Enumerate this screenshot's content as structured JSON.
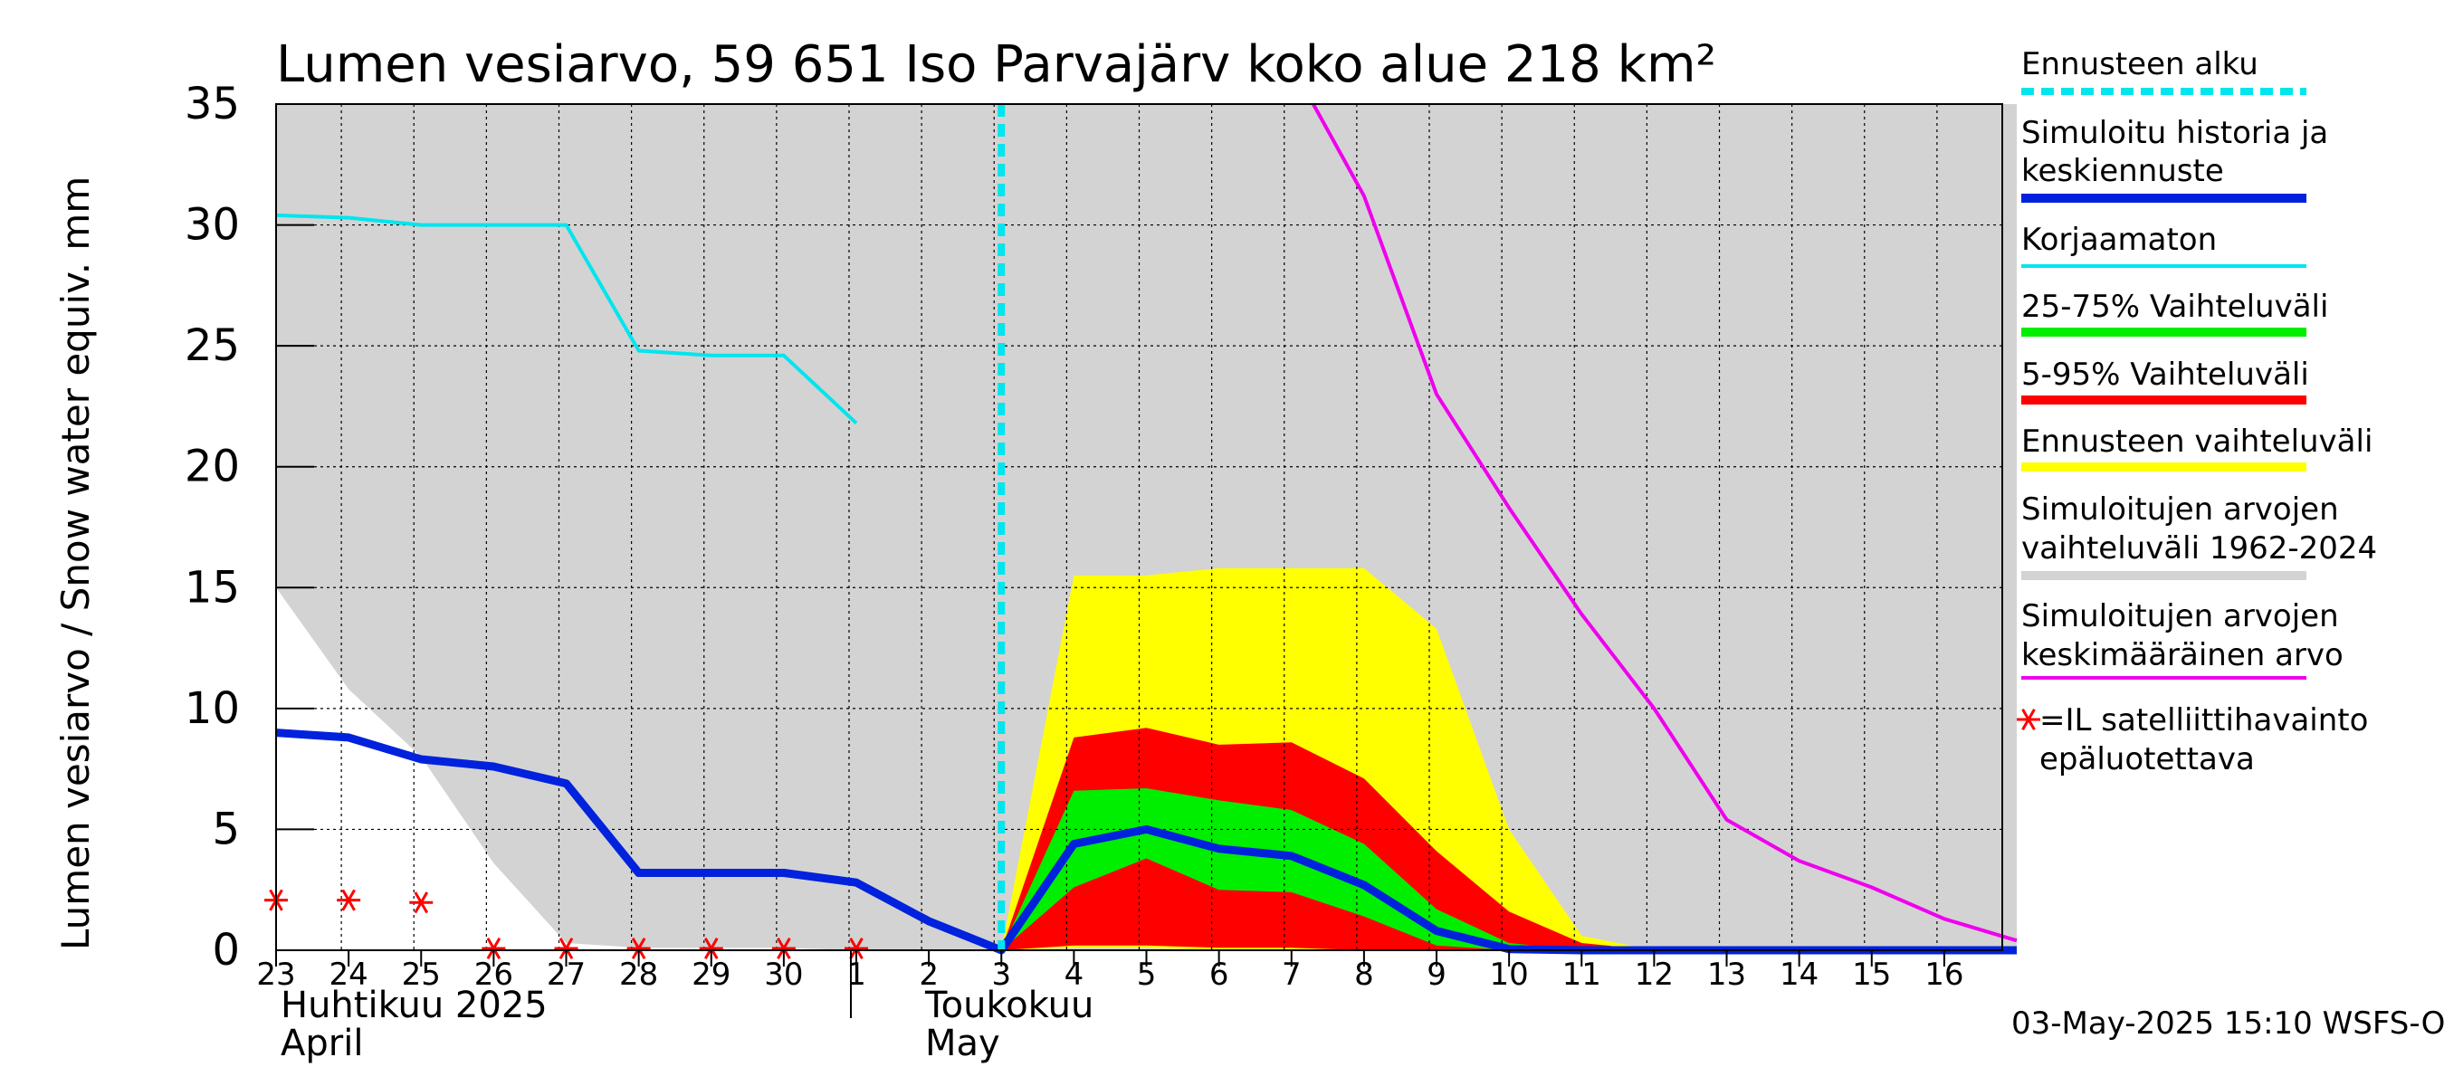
{
  "chart_data": {
    "type": "area",
    "title": "Lumen vesiarvo, 59 651 Iso Parvajärv koko alue 218 km²",
    "ylabel": "Lumen vesiarvo / Snow water equiv.    mm",
    "ylim": [
      0,
      35
    ],
    "yticks": [
      "0",
      "5",
      "10",
      "15",
      "20",
      "25",
      "30",
      "35"
    ],
    "x_day_labels": [
      "23",
      "24",
      "25",
      "26",
      "27",
      "28",
      "29",
      "30",
      "1",
      "2",
      "3",
      "4",
      "5",
      "6",
      "7",
      "8",
      "9",
      "10",
      "11",
      "12",
      "13",
      "14",
      "15",
      "16"
    ],
    "month_labels": [
      "Huhtikuu  2025",
      "April",
      "Toukokuu",
      "May"
    ],
    "grid": true,
    "legend_position": "right",
    "forecast_start_day": 10,
    "series": [
      {
        "name": "Simuloitujen arvojen vaihteluväli 1962-2024",
        "color": "#d3d3d3",
        "x": [
          0,
          1,
          2,
          3,
          4,
          5,
          6,
          7,
          8,
          9,
          10,
          11,
          12,
          13,
          14,
          15,
          16,
          17,
          18,
          19,
          20,
          21,
          22,
          23,
          24
        ],
        "upper": [
          35,
          35,
          35,
          35,
          35,
          35,
          35,
          35,
          35,
          35,
          35,
          35,
          35,
          35,
          35,
          35,
          35,
          35,
          35,
          35,
          35,
          35,
          35,
          35,
          35
        ],
        "lower": [
          15,
          10.8,
          8,
          3.6,
          0.3,
          0.1,
          0.1,
          0.1,
          0,
          0,
          0,
          0,
          0,
          0,
          0,
          0,
          0,
          0,
          0,
          0,
          0,
          0,
          0,
          0,
          0
        ]
      },
      {
        "name": "Ennusteen vaihteluväli",
        "color": "#ffff00",
        "x": [
          10,
          11,
          12,
          13,
          14,
          15,
          16,
          17,
          18,
          19
        ],
        "upper": [
          0,
          15.5,
          15.5,
          15.8,
          15.8,
          15.8,
          13.3,
          5,
          0.6,
          0
        ],
        "lower": [
          0,
          0.1,
          0.1,
          0,
          0,
          0,
          0,
          0,
          0,
          0
        ]
      },
      {
        "name": "5-95% Vaihteluväli",
        "color": "#ff0000",
        "x": [
          10,
          11,
          12,
          13,
          14,
          15,
          16,
          17,
          18,
          19
        ],
        "upper": [
          0,
          8.8,
          9.2,
          8.5,
          8.6,
          7.1,
          4.1,
          1.6,
          0.3,
          0
        ],
        "lower": [
          0,
          0.2,
          0.2,
          0.1,
          0.1,
          0,
          0,
          0,
          0,
          0
        ]
      },
      {
        "name": "25-75% Vaihteluväli",
        "color": "#00ee00",
        "x": [
          10,
          11,
          12,
          13,
          14,
          15,
          16,
          17,
          18
        ],
        "upper": [
          0,
          6.6,
          6.7,
          6.2,
          5.8,
          4.4,
          1.7,
          0.3,
          0
        ],
        "lower": [
          0,
          2.6,
          3.8,
          2.5,
          2.4,
          1.4,
          0.2,
          0,
          0
        ]
      },
      {
        "name": "Korjaamaton",
        "color": "#00e5ee",
        "x": [
          0,
          1,
          2,
          3,
          4,
          5,
          6,
          7,
          8
        ],
        "values": [
          30.4,
          30.3,
          30,
          30,
          30,
          24.8,
          24.6,
          24.6,
          21.8
        ]
      },
      {
        "name": "Simuloitujen arvojen keskimääräinen arvo",
        "color": "#ee00ee",
        "x": [
          14.3,
          15,
          16,
          17,
          18,
          19,
          20,
          21,
          22,
          23,
          24
        ],
        "values": [
          35,
          31.2,
          23,
          18.3,
          13.9,
          10,
          5.4,
          3.7,
          2.6,
          1.3,
          0.4
        ]
      },
      {
        "name": "Simuloitu historia ja keskiennuste",
        "color": "#0022dd",
        "x": [
          0,
          1,
          2,
          3,
          4,
          5,
          6,
          7,
          8,
          9,
          10,
          11,
          12,
          13,
          14,
          15,
          16,
          17,
          18,
          19,
          20,
          21,
          22,
          23,
          24
        ],
        "values": [
          9,
          8.8,
          7.9,
          7.6,
          6.9,
          3.2,
          3.2,
          3.2,
          2.8,
          1.2,
          0,
          4.4,
          5,
          4.2,
          3.9,
          2.7,
          0.8,
          0.05,
          0,
          0,
          0,
          0,
          0,
          0,
          0
        ]
      },
      {
        "name": "=IL satelliittihavainto epäluotettava",
        "color": "#ff0000",
        "x": [
          0,
          1,
          2,
          3,
          4,
          5,
          6,
          7,
          8
        ],
        "values": [
          2,
          2,
          1.9,
          0,
          0,
          0,
          0,
          0,
          0
        ]
      }
    ]
  },
  "legend": [
    {
      "label": "Ennusteen alku",
      "color": "#00e5ee",
      "style": "dashed"
    },
    {
      "label": "Simuloitu historia ja keskiennuste",
      "color": "#0022dd",
      "style": "thick"
    },
    {
      "label": "Korjaamaton",
      "color": "#00e5ee",
      "style": "line"
    },
    {
      "label": "25-75% Vaihteluväli",
      "color": "#00ee00",
      "style": "thick"
    },
    {
      "label": "5-95% Vaihteluväli",
      "color": "#ff0000",
      "style": "thick"
    },
    {
      "label": "Ennusteen vaihteluväli",
      "color": "#ffff00",
      "style": "thick"
    },
    {
      "label": "Simuloitujen arvojen vaihteluväli 1962-2024",
      "color": "#d3d3d3",
      "style": "thick"
    },
    {
      "label": "Simuloitujen arvojen keskimääräinen arvo",
      "color": "#ee00ee",
      "style": "line"
    },
    {
      "label": "=IL satelliittihavainto epäluotettava",
      "color": "#ff0000",
      "style": "star"
    }
  ],
  "footer": "03-May-2025 15:10 WSFS-O"
}
